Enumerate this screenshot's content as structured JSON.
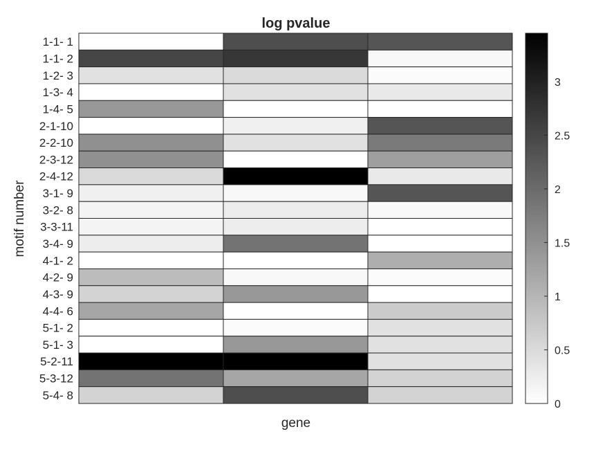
{
  "chart_data": {
    "type": "heatmap",
    "title": "log pvalue",
    "xlabel": "gene",
    "ylabel": "motif number",
    "colormap": "gray-reversed",
    "color_min": "#ffffff",
    "color_max": "#000000",
    "clim": [
      0,
      3.45
    ],
    "colorbar_ticks": [
      "0",
      "0.5",
      "1",
      "1.5",
      "2",
      "2.5",
      "3"
    ],
    "rows": [
      "1-1- 1",
      "1-1- 2",
      "1-2- 3",
      "1-3- 4",
      "1-4- 5",
      "2-1-10",
      "2-2-10",
      "2-3-12",
      "2-4-12",
      "3-1- 9",
      "3-2- 8",
      "3-3-11",
      "3-4- 9",
      "4-1- 2",
      "4-2- 9",
      "4-3- 9",
      "4-4- 6",
      "5-1- 2",
      "5-1- 3",
      "5-2-11",
      "5-3-12",
      "5-4- 8"
    ],
    "columns": 3,
    "values": [
      [
        0.0,
        2.4,
        2.3
      ],
      [
        2.5,
        2.7,
        0.1
      ],
      [
        0.4,
        0.5,
        0.05
      ],
      [
        0.0,
        0.4,
        0.3
      ],
      [
        1.4,
        0.0,
        0.0
      ],
      [
        0.0,
        0.2,
        2.3
      ],
      [
        1.5,
        0.4,
        1.8
      ],
      [
        1.5,
        0.0,
        1.3
      ],
      [
        0.5,
        3.45,
        0.3
      ],
      [
        0.2,
        0.1,
        2.3
      ],
      [
        0.15,
        0.25,
        0.1
      ],
      [
        0.15,
        0.25,
        0.0
      ],
      [
        0.25,
        1.9,
        0.0
      ],
      [
        0.0,
        0.0,
        1.1
      ],
      [
        0.9,
        0.1,
        0.05
      ],
      [
        0.6,
        1.4,
        0.0
      ],
      [
        1.2,
        0.0,
        0.7
      ],
      [
        0.0,
        0.05,
        0.4
      ],
      [
        0.0,
        1.4,
        0.4
      ],
      [
        3.45,
        3.45,
        0.4
      ],
      [
        1.9,
        1.2,
        0.6
      ],
      [
        0.6,
        2.4,
        0.6
      ]
    ]
  }
}
